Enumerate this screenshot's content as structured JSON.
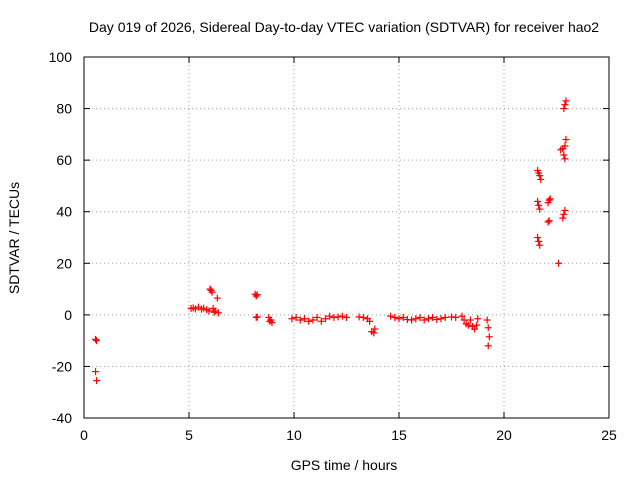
{
  "chart_data": {
    "type": "scatter",
    "title": "Day 019 of 2026, Sidereal Day-to-day VTEC variation (SDTVAR) for receiver hao2",
    "xlabel": "GPS time / hours",
    "ylabel": "SDTVAR / TECUs",
    "xlim": [
      0,
      25
    ],
    "ylim": [
      -40,
      100
    ],
    "xticks": [
      0,
      5,
      10,
      15,
      20,
      25
    ],
    "yticks": [
      -40,
      -20,
      0,
      20,
      40,
      60,
      80,
      100
    ],
    "grid": true,
    "marker": "+",
    "color": "#ff0000",
    "series": [
      {
        "name": "SDTVAR",
        "points": [
          [
            0.55,
            -9.5
          ],
          [
            0.6,
            -10
          ],
          [
            0.55,
            -22
          ],
          [
            0.6,
            -25.5
          ],
          [
            5.1,
            2.5
          ],
          [
            5.2,
            2.7
          ],
          [
            5.3,
            2.3
          ],
          [
            5.45,
            3
          ],
          [
            5.6,
            2.2
          ],
          [
            5.7,
            2.6
          ],
          [
            5.85,
            2
          ],
          [
            5.95,
            1.5
          ],
          [
            6.0,
            10
          ],
          [
            6.05,
            9.5
          ],
          [
            6.1,
            8.8
          ],
          [
            6.15,
            2.5
          ],
          [
            6.2,
            1
          ],
          [
            6.25,
            1.5
          ],
          [
            6.35,
            6.5
          ],
          [
            6.4,
            0.8
          ],
          [
            8.15,
            8
          ],
          [
            8.2,
            7.3
          ],
          [
            8.25,
            7.8
          ],
          [
            8.2,
            -1
          ],
          [
            8.25,
            -0.8
          ],
          [
            8.8,
            -1
          ],
          [
            8.85,
            -2.5
          ],
          [
            8.9,
            -2
          ],
          [
            8.95,
            -3
          ],
          [
            9.9,
            -1.5
          ],
          [
            10.1,
            -1
          ],
          [
            10.3,
            -2
          ],
          [
            10.5,
            -1.5
          ],
          [
            10.7,
            -2.5
          ],
          [
            10.9,
            -2
          ],
          [
            11.1,
            -1
          ],
          [
            11.3,
            -2.5
          ],
          [
            11.5,
            -1.5
          ],
          [
            11.7,
            -0.5
          ],
          [
            11.9,
            -1
          ],
          [
            12.1,
            -0.8
          ],
          [
            12.3,
            -0.5
          ],
          [
            12.5,
            -1
          ],
          [
            13.1,
            -0.8
          ],
          [
            13.3,
            -1
          ],
          [
            13.5,
            -1.5
          ],
          [
            13.6,
            -2.5
          ],
          [
            13.7,
            -6.5
          ],
          [
            13.8,
            -7
          ],
          [
            13.85,
            -5.5
          ],
          [
            14.6,
            -0.5
          ],
          [
            14.8,
            -1
          ],
          [
            15.0,
            -1.5
          ],
          [
            15.2,
            -1
          ],
          [
            15.4,
            -1.8
          ],
          [
            15.6,
            -2
          ],
          [
            15.8,
            -1.5
          ],
          [
            16.0,
            -1
          ],
          [
            16.2,
            -2
          ],
          [
            16.4,
            -1.5
          ],
          [
            16.6,
            -1
          ],
          [
            16.8,
            -1.8
          ],
          [
            17.0,
            -1.5
          ],
          [
            17.2,
            -1
          ],
          [
            17.5,
            -0.8
          ],
          [
            17.7,
            -1
          ],
          [
            18.0,
            -0.5
          ],
          [
            18.1,
            -2
          ],
          [
            18.2,
            -3.5
          ],
          [
            18.3,
            -4
          ],
          [
            18.4,
            -2
          ],
          [
            18.5,
            -4.5
          ],
          [
            18.6,
            -5.5
          ],
          [
            18.7,
            -4
          ],
          [
            18.75,
            -1.5
          ],
          [
            19.2,
            -2
          ],
          [
            19.25,
            -5
          ],
          [
            19.3,
            -8.5
          ],
          [
            19.25,
            -12
          ],
          [
            21.6,
            56
          ],
          [
            21.65,
            55
          ],
          [
            21.7,
            54
          ],
          [
            21.75,
            52.5
          ],
          [
            21.6,
            44
          ],
          [
            21.65,
            42.5
          ],
          [
            21.7,
            41
          ],
          [
            21.6,
            30
          ],
          [
            21.65,
            28.5
          ],
          [
            21.7,
            27
          ],
          [
            22.1,
            43.5
          ],
          [
            22.15,
            44.5
          ],
          [
            22.2,
            45
          ],
          [
            22.1,
            36
          ],
          [
            22.15,
            36.5
          ],
          [
            22.6,
            20
          ],
          [
            22.7,
            64
          ],
          [
            22.8,
            64.5
          ],
          [
            22.85,
            62
          ],
          [
            22.9,
            60.5
          ],
          [
            22.9,
            65.5
          ],
          [
            22.95,
            68
          ],
          [
            22.85,
            80
          ],
          [
            22.9,
            81.5
          ],
          [
            22.95,
            83
          ],
          [
            22.8,
            37.5
          ],
          [
            22.85,
            39
          ],
          [
            22.9,
            40.5
          ]
        ]
      }
    ]
  }
}
